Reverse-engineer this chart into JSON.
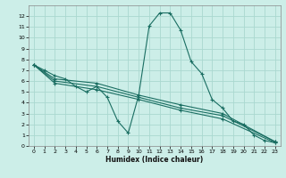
{
  "xlabel": "Humidex (Indice chaleur)",
  "bg_color": "#cceee8",
  "line_color": "#1a6e62",
  "grid_color": "#aad8d0",
  "xlim": [
    -0.5,
    23.5
  ],
  "ylim": [
    0,
    13
  ],
  "xticks": [
    0,
    1,
    2,
    3,
    4,
    5,
    6,
    7,
    8,
    9,
    10,
    11,
    12,
    13,
    14,
    15,
    16,
    17,
    18,
    19,
    20,
    21,
    22,
    23
  ],
  "yticks": [
    0,
    1,
    2,
    3,
    4,
    5,
    6,
    7,
    8,
    9,
    10,
    11,
    12
  ],
  "lines": [
    {
      "x": [
        0,
        1,
        2,
        3,
        4,
        5,
        6,
        7,
        8,
        9,
        10,
        11,
        12,
        13,
        14,
        15,
        16,
        17,
        18,
        19,
        20,
        21,
        22,
        23
      ],
      "y": [
        7.5,
        7.0,
        6.5,
        6.2,
        5.5,
        5.0,
        5.5,
        4.5,
        2.3,
        1.2,
        4.7,
        11.1,
        12.3,
        12.3,
        10.7,
        7.8,
        6.7,
        4.3,
        3.5,
        2.3,
        2.0,
        1.0,
        0.5,
        0.3
      ]
    },
    {
      "x": [
        0,
        2,
        6,
        10,
        14,
        18,
        23
      ],
      "y": [
        7.5,
        6.2,
        5.8,
        4.7,
        3.8,
        3.0,
        0.4
      ]
    },
    {
      "x": [
        0,
        2,
        6,
        10,
        14,
        18,
        23
      ],
      "y": [
        7.5,
        6.0,
        5.5,
        4.5,
        3.5,
        2.8,
        0.4
      ]
    },
    {
      "x": [
        0,
        2,
        6,
        10,
        14,
        18,
        23
      ],
      "y": [
        7.5,
        5.8,
        5.2,
        4.3,
        3.3,
        2.5,
        0.3
      ]
    }
  ],
  "marker": "+",
  "markersize": 3,
  "linewidth": 0.8
}
